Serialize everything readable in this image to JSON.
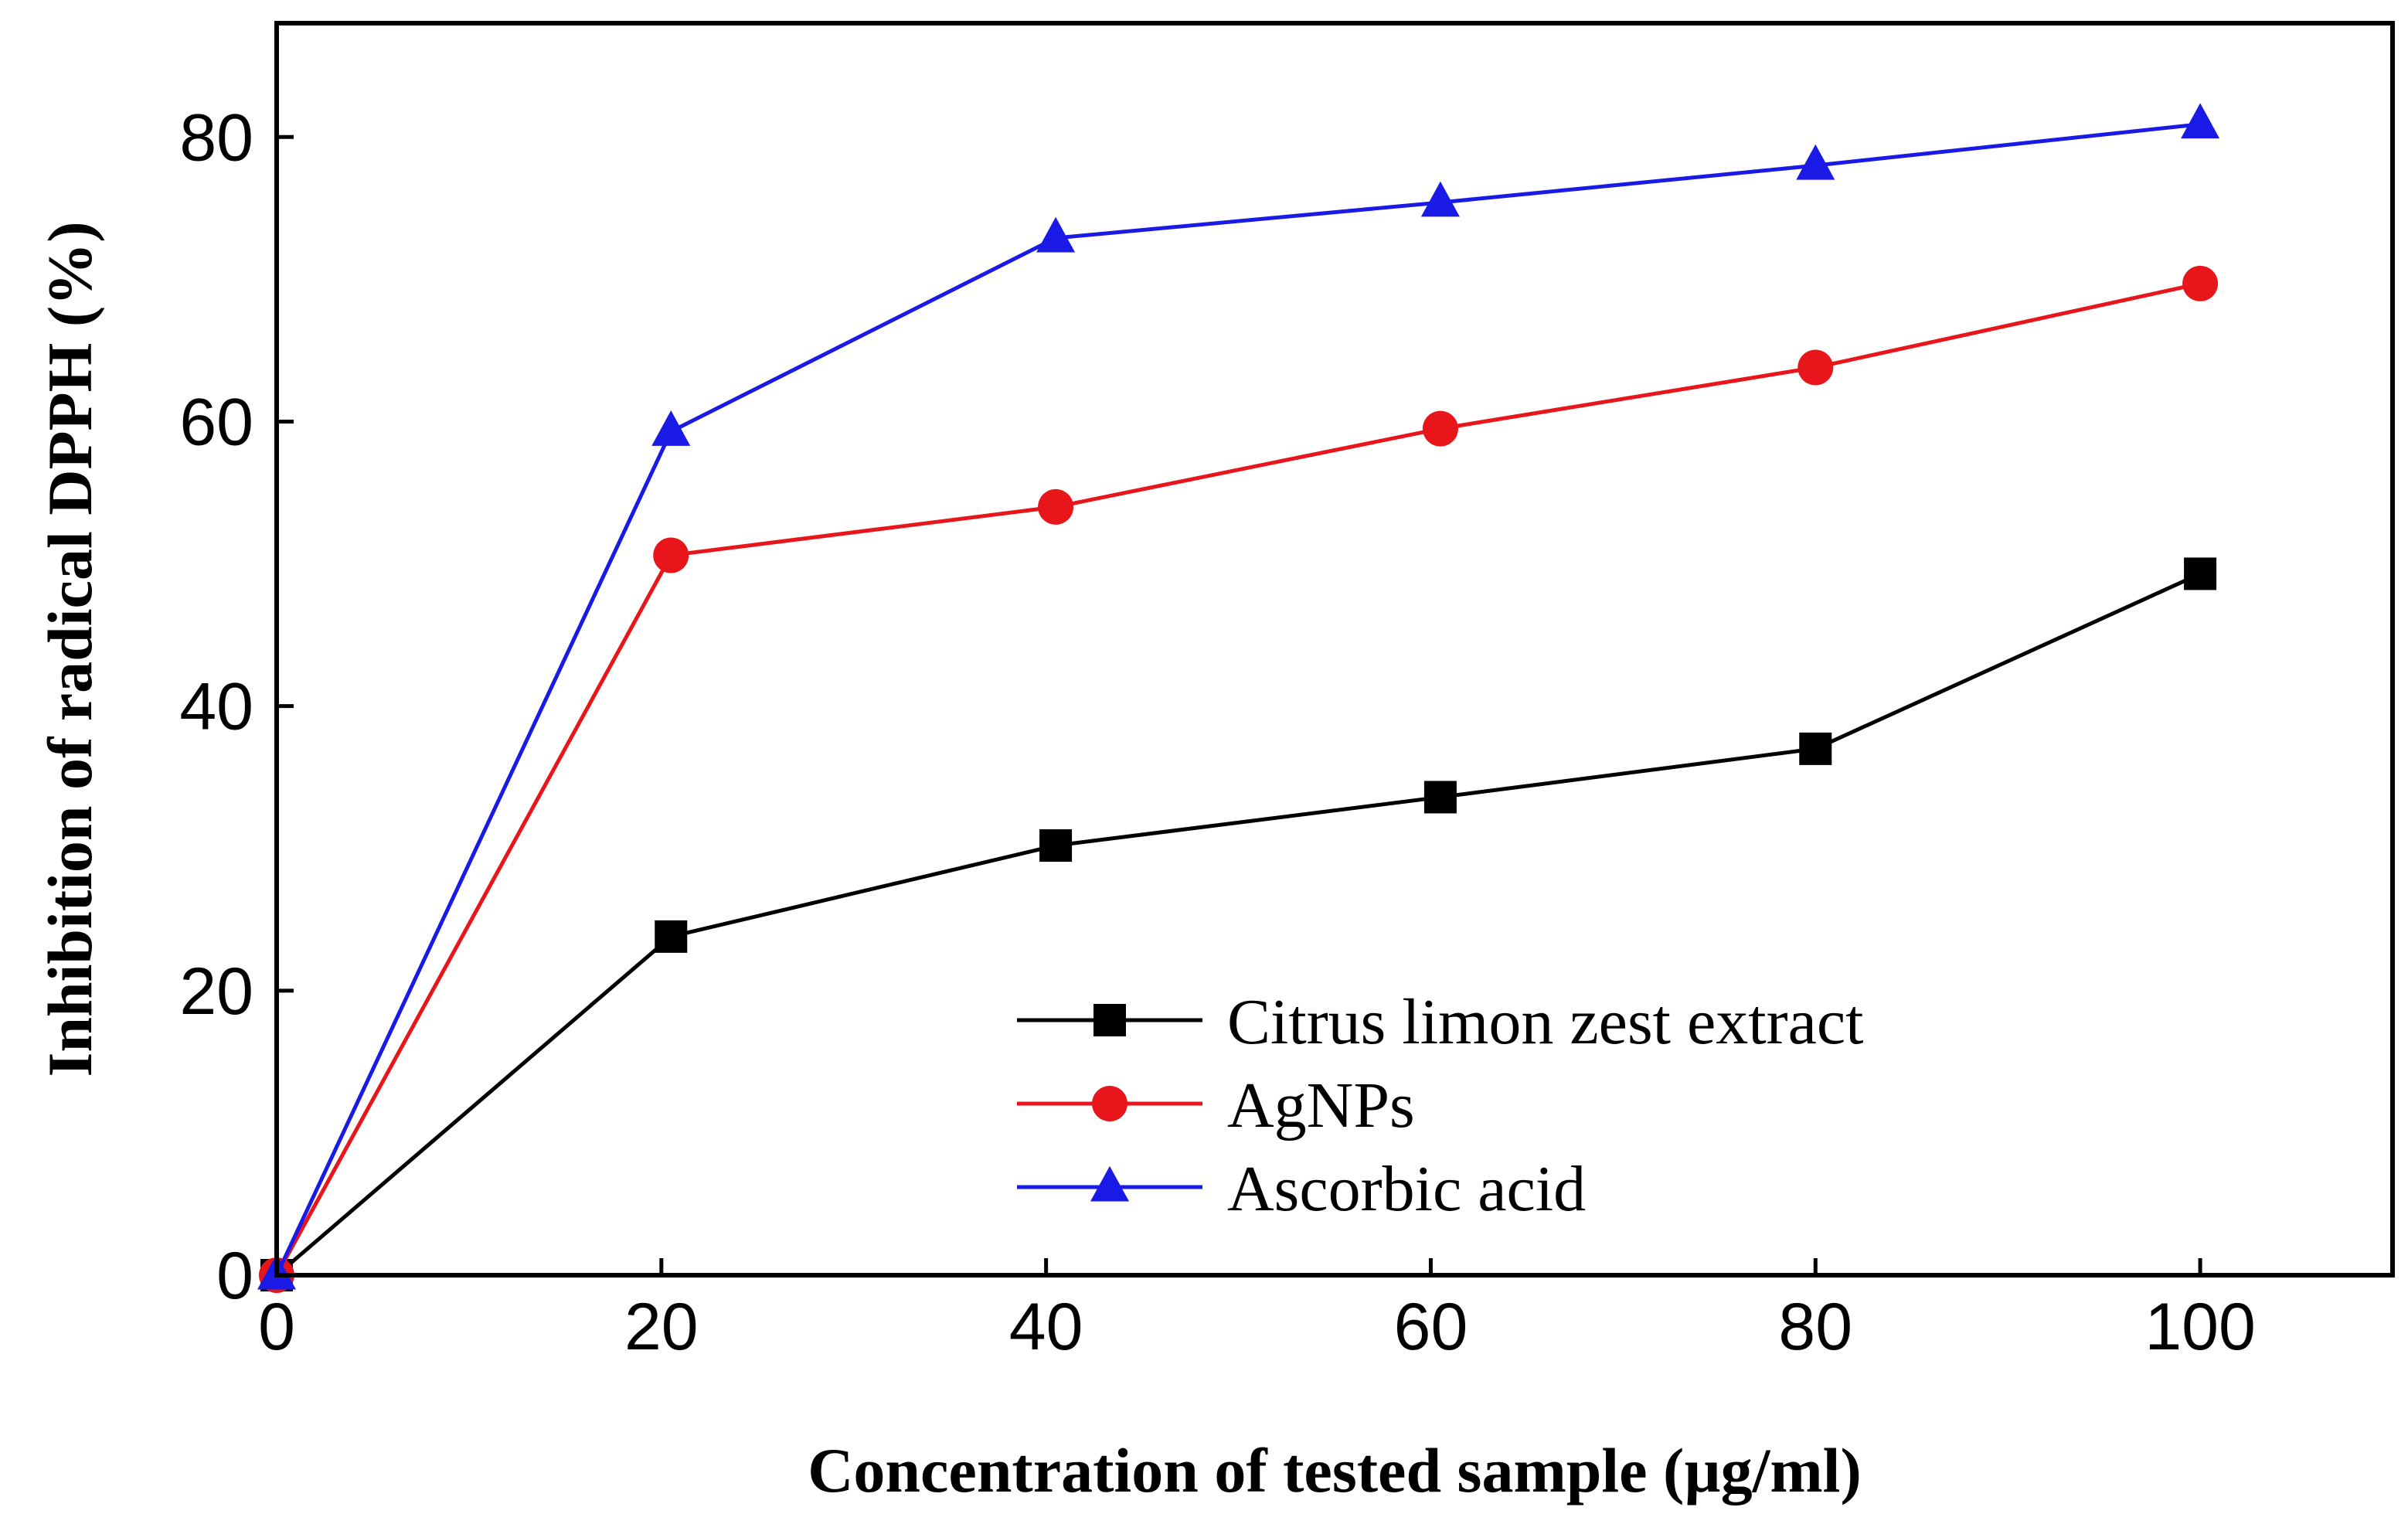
{
  "chart_data": {
    "type": "line",
    "title": "",
    "xlabel": "Concentration of tested sample (µg/ml)",
    "ylabel": "Inhibition of radical DPPH (%)",
    "xlim": [
      0,
      110
    ],
    "ylim": [
      0,
      88
    ],
    "xticks": [
      0,
      20,
      40,
      60,
      80,
      100
    ],
    "yticks": [
      0,
      20,
      40,
      60,
      80
    ],
    "x": [
      0,
      20.5,
      40.5,
      60.5,
      80,
      100
    ],
    "legend_position": "lower-right",
    "grid": false,
    "series": [
      {
        "name": "Citrus limon zest extract",
        "values": [
          0,
          23.8,
          30.2,
          33.6,
          37.0,
          49.3
        ],
        "color": "#000000",
        "marker": "square"
      },
      {
        "name": "AgNPs",
        "values": [
          0,
          50.6,
          54.0,
          59.5,
          63.8,
          69.7
        ],
        "color": "#e8161b",
        "marker": "circle"
      },
      {
        "name": "Ascorbic acid",
        "values": [
          0,
          59.3,
          72.9,
          75.4,
          78.0,
          80.9
        ],
        "color": "#1a1ae6",
        "marker": "triangle"
      }
    ]
  }
}
